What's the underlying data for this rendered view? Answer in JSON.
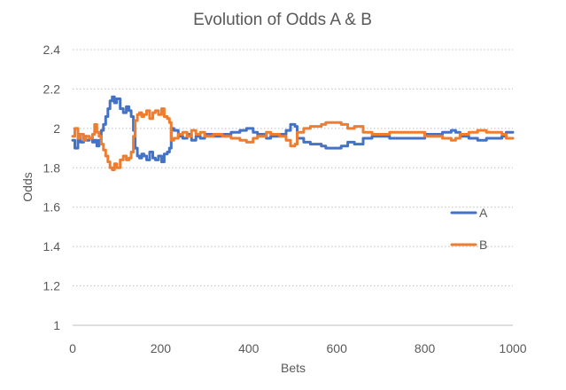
{
  "chart_data": {
    "type": "line",
    "title": "Evolution of Odds A & B",
    "xlabel": "Bets",
    "ylabel": "Odds",
    "xlim": [
      0,
      1000
    ],
    "ylim": [
      1,
      2.4
    ],
    "x_ticks": [
      "0",
      "200",
      "400",
      "600",
      "800",
      "1000"
    ],
    "y_ticks": [
      "1",
      "1.2",
      "1.4",
      "1.6",
      "1.8",
      "2",
      "2.2",
      "2.4"
    ],
    "grid": "horizontal dotted",
    "legend_position": "right",
    "series": [
      {
        "name": "A",
        "color": "#4472c4",
        "points": [
          [
            0,
            1.94
          ],
          [
            5,
            1.9
          ],
          [
            12,
            1.97
          ],
          [
            18,
            1.93
          ],
          [
            25,
            1.96
          ],
          [
            30,
            1.94
          ],
          [
            38,
            1.95
          ],
          [
            45,
            1.93
          ],
          [
            50,
            1.94
          ],
          [
            55,
            1.91
          ],
          [
            60,
            1.94
          ],
          [
            65,
            1.99
          ],
          [
            70,
            2.02
          ],
          [
            75,
            2.06
          ],
          [
            80,
            2.1
          ],
          [
            85,
            2.14
          ],
          [
            90,
            2.16
          ],
          [
            95,
            2.13
          ],
          [
            100,
            2.15
          ],
          [
            108,
            2.1
          ],
          [
            115,
            2.08
          ],
          [
            122,
            2.11
          ],
          [
            128,
            2.09
          ],
          [
            133,
            2.06
          ],
          [
            138,
            1.99
          ],
          [
            142,
            1.9
          ],
          [
            147,
            1.86
          ],
          [
            152,
            1.85
          ],
          [
            157,
            1.87
          ],
          [
            162,
            1.86
          ],
          [
            168,
            1.84
          ],
          [
            175,
            1.88
          ],
          [
            182,
            1.85
          ],
          [
            188,
            1.84
          ],
          [
            195,
            1.86
          ],
          [
            202,
            1.83
          ],
          [
            208,
            1.87
          ],
          [
            215,
            1.88
          ],
          [
            220,
            1.9
          ],
          [
            224,
            2.0
          ],
          [
            230,
            1.99
          ],
          [
            240,
            1.96
          ],
          [
            250,
            1.95
          ],
          [
            260,
            1.97
          ],
          [
            270,
            1.94
          ],
          [
            280,
            1.96
          ],
          [
            290,
            1.95
          ],
          [
            300,
            1.97
          ],
          [
            320,
            1.96
          ],
          [
            340,
            1.97
          ],
          [
            360,
            1.98
          ],
          [
            380,
            1.99
          ],
          [
            395,
            2.0
          ],
          [
            410,
            1.98
          ],
          [
            420,
            1.97
          ],
          [
            440,
            1.95
          ],
          [
            450,
            1.96
          ],
          [
            470,
            1.97
          ],
          [
            485,
            1.99
          ],
          [
            495,
            2.02
          ],
          [
            505,
            2.01
          ],
          [
            510,
            1.95
          ],
          [
            525,
            1.93
          ],
          [
            540,
            1.92
          ],
          [
            555,
            1.92
          ],
          [
            565,
            1.91
          ],
          [
            575,
            1.9
          ],
          [
            590,
            1.9
          ],
          [
            610,
            1.91
          ],
          [
            625,
            1.93
          ],
          [
            640,
            1.92
          ],
          [
            660,
            1.95
          ],
          [
            680,
            1.96
          ],
          [
            700,
            1.96
          ],
          [
            720,
            1.95
          ],
          [
            740,
            1.95
          ],
          [
            760,
            1.95
          ],
          [
            780,
            1.95
          ],
          [
            800,
            1.97
          ],
          [
            820,
            1.97
          ],
          [
            840,
            1.98
          ],
          [
            860,
            1.99
          ],
          [
            870,
            1.98
          ],
          [
            880,
            1.96
          ],
          [
            900,
            1.95
          ],
          [
            920,
            1.94
          ],
          [
            940,
            1.95
          ],
          [
            960,
            1.95
          ],
          [
            975,
            1.96
          ],
          [
            985,
            1.98
          ],
          [
            1000,
            1.98
          ]
        ]
      },
      {
        "name": "B",
        "color": "#ed7d31",
        "points": [
          [
            0,
            1.96
          ],
          [
            5,
            2.0
          ],
          [
            12,
            1.95
          ],
          [
            18,
            1.97
          ],
          [
            25,
            1.94
          ],
          [
            30,
            1.96
          ],
          [
            38,
            1.95
          ],
          [
            45,
            1.97
          ],
          [
            50,
            2.02
          ],
          [
            55,
            1.98
          ],
          [
            60,
            1.96
          ],
          [
            65,
            1.92
          ],
          [
            70,
            1.89
          ],
          [
            75,
            1.86
          ],
          [
            80,
            1.83
          ],
          [
            85,
            1.8
          ],
          [
            90,
            1.79
          ],
          [
            95,
            1.82
          ],
          [
            100,
            1.8
          ],
          [
            108,
            1.84
          ],
          [
            115,
            1.86
          ],
          [
            122,
            1.84
          ],
          [
            128,
            1.85
          ],
          [
            133,
            1.88
          ],
          [
            138,
            1.96
          ],
          [
            142,
            2.04
          ],
          [
            147,
            2.07
          ],
          [
            152,
            2.08
          ],
          [
            157,
            2.06
          ],
          [
            162,
            2.07
          ],
          [
            168,
            2.09
          ],
          [
            175,
            2.05
          ],
          [
            182,
            2.08
          ],
          [
            188,
            2.09
          ],
          [
            195,
            2.07
          ],
          [
            202,
            2.1
          ],
          [
            208,
            2.06
          ],
          [
            215,
            2.05
          ],
          [
            220,
            2.03
          ],
          [
            224,
            1.94
          ],
          [
            230,
            1.95
          ],
          [
            240,
            1.97
          ],
          [
            250,
            1.98
          ],
          [
            260,
            1.96
          ],
          [
            270,
            1.99
          ],
          [
            280,
            1.97
          ],
          [
            290,
            1.98
          ],
          [
            300,
            1.96
          ],
          [
            320,
            1.97
          ],
          [
            340,
            1.96
          ],
          [
            360,
            1.95
          ],
          [
            380,
            1.94
          ],
          [
            395,
            1.93
          ],
          [
            410,
            1.95
          ],
          [
            420,
            1.96
          ],
          [
            440,
            1.98
          ],
          [
            450,
            1.97
          ],
          [
            470,
            1.96
          ],
          [
            485,
            1.94
          ],
          [
            495,
            1.91
          ],
          [
            505,
            1.92
          ],
          [
            510,
            1.98
          ],
          [
            525,
            2.0
          ],
          [
            540,
            2.01
          ],
          [
            555,
            2.01
          ],
          [
            565,
            2.02
          ],
          [
            575,
            2.03
          ],
          [
            590,
            2.03
          ],
          [
            610,
            2.02
          ],
          [
            625,
            2.0
          ],
          [
            640,
            2.01
          ],
          [
            660,
            1.98
          ],
          [
            680,
            1.97
          ],
          [
            700,
            1.97
          ],
          [
            720,
            1.98
          ],
          [
            740,
            1.98
          ],
          [
            760,
            1.98
          ],
          [
            780,
            1.98
          ],
          [
            800,
            1.96
          ],
          [
            820,
            1.96
          ],
          [
            840,
            1.95
          ],
          [
            860,
            1.94
          ],
          [
            870,
            1.95
          ],
          [
            880,
            1.97
          ],
          [
            900,
            1.98
          ],
          [
            920,
            1.99
          ],
          [
            940,
            1.98
          ],
          [
            960,
            1.98
          ],
          [
            975,
            1.97
          ],
          [
            985,
            1.95
          ],
          [
            1000,
            1.95
          ]
        ]
      }
    ]
  }
}
